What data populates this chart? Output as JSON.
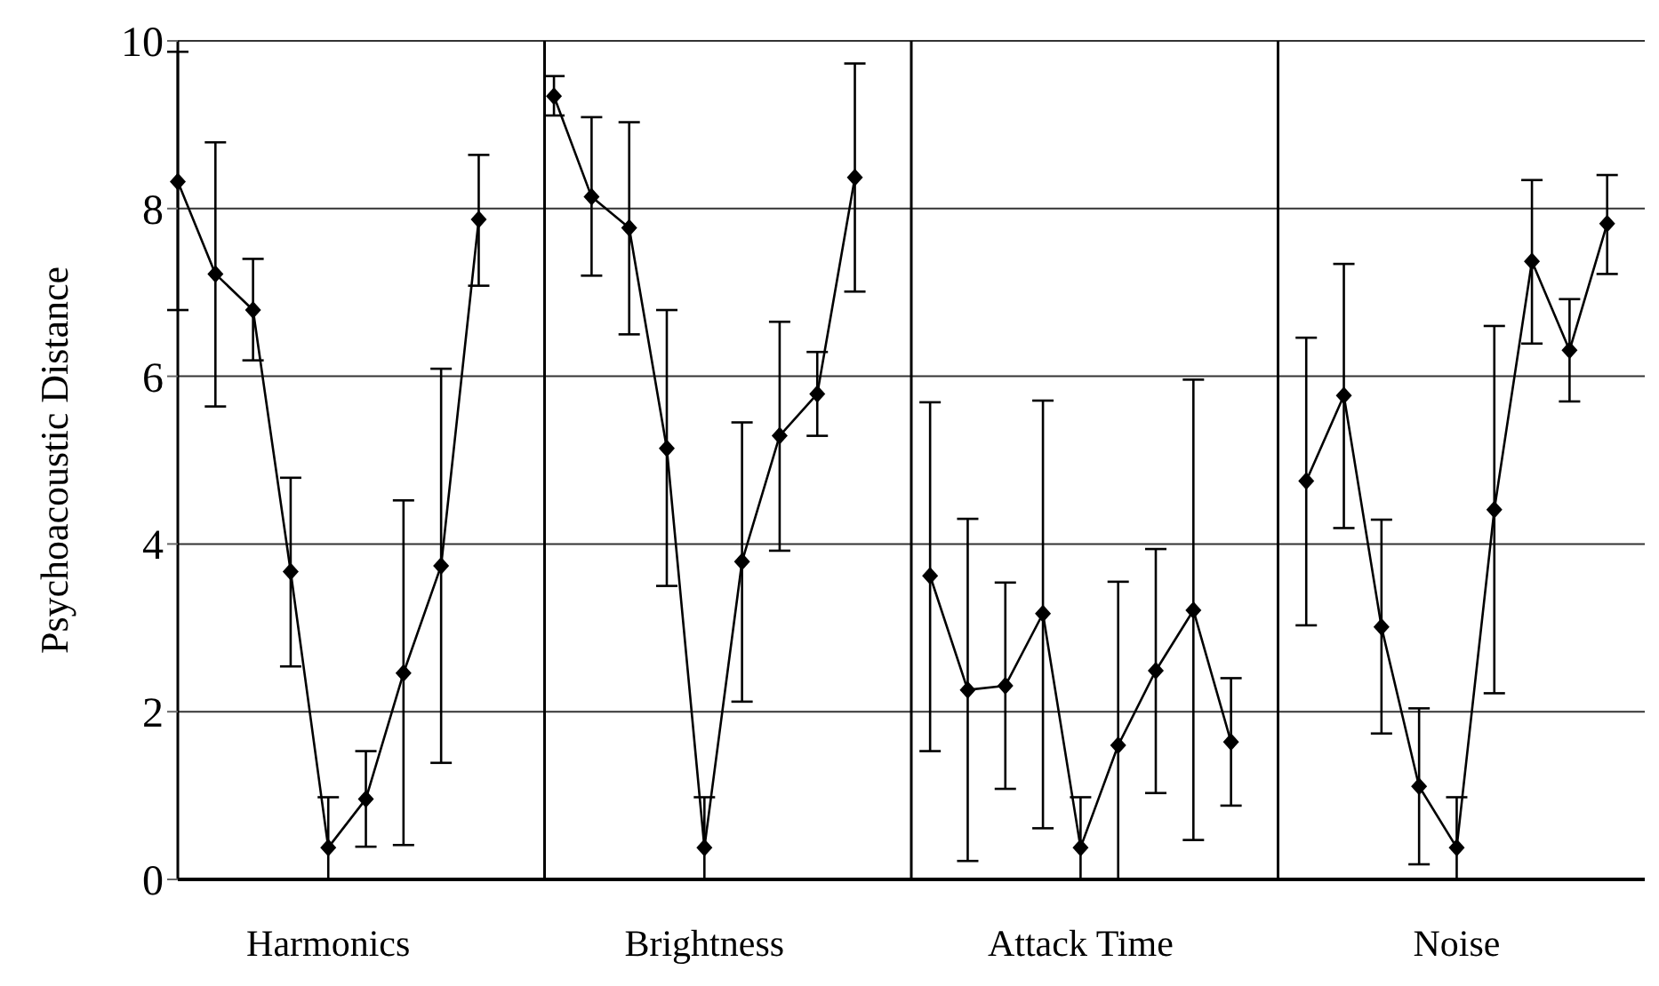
{
  "chart_data": {
    "type": "line",
    "ylabel": "Psychoacoustic Distance",
    "categories": [
      null,
      null,
      null,
      null,
      "Harmonics",
      null,
      null,
      null,
      null,
      null,
      null,
      null,
      null,
      null,
      "Brightness",
      null,
      null,
      null,
      null,
      null,
      null,
      null,
      null,
      null,
      "Attack Time",
      null,
      null,
      null,
      null,
      null,
      null,
      null,
      null,
      null,
      "Noise",
      null,
      null,
      null,
      null,
      null
    ],
    "series": [
      {
        "color": "#000000",
        "values": [
          8.32,
          7.22,
          6.79,
          3.67,
          0.38,
          0.96,
          2.46,
          3.74,
          7.87,
          null,
          null,
          null,
          null,
          null,
          null,
          null,
          null,
          null,
          null,
          null,
          null,
          null,
          null,
          null,
          null,
          null,
          null,
          null,
          null,
          null,
          null,
          null,
          null,
          null,
          null,
          null,
          null,
          null,
          null,
          null
        ],
        "errors": [
          [
            6.79,
            9.87
          ],
          [
            5.64,
            8.79
          ],
          [
            6.19,
            7.4
          ],
          [
            2.54,
            4.79
          ],
          [
            0,
            0.98
          ],
          [
            0.39,
            1.53
          ],
          [
            0.41,
            4.52
          ],
          [
            1.39,
            6.09
          ],
          [
            7.08,
            8.64
          ],
          null,
          null,
          null,
          null,
          null,
          null,
          null,
          null,
          null,
          null,
          null,
          null,
          null,
          null,
          null,
          null,
          null,
          null,
          null,
          null,
          null,
          null,
          null,
          null,
          null,
          null,
          null,
          null,
          null,
          null,
          null
        ]
      },
      {
        "color": "#000000",
        "values": [
          null,
          null,
          null,
          null,
          null,
          null,
          null,
          null,
          null,
          null,
          9.34,
          8.14,
          7.77,
          5.14,
          0.38,
          3.79,
          5.29,
          5.79,
          8.37,
          null,
          null,
          null,
          null,
          null,
          null,
          null,
          null,
          null,
          null,
          null,
          null,
          null,
          null,
          null,
          null,
          null,
          null,
          null,
          null,
          null
        ],
        "errors": [
          null,
          null,
          null,
          null,
          null,
          null,
          null,
          null,
          null,
          null,
          [
            9.11,
            9.58
          ],
          [
            7.2,
            9.09
          ],
          [
            6.5,
            9.03
          ],
          [
            3.5,
            6.79
          ],
          [
            0,
            0.98
          ],
          [
            2.12,
            5.45
          ],
          [
            3.92,
            6.65
          ],
          [
            5.29,
            6.29
          ],
          [
            7.01,
            9.73
          ],
          null,
          null,
          null,
          null,
          null,
          null,
          null,
          null,
          null,
          null,
          null,
          null,
          null,
          null,
          null,
          null,
          null,
          null,
          null,
          null,
          null
        ]
      },
      {
        "color": "#000000",
        "values": [
          null,
          null,
          null,
          null,
          null,
          null,
          null,
          null,
          null,
          null,
          null,
          null,
          null,
          null,
          null,
          null,
          null,
          null,
          null,
          null,
          3.62,
          2.26,
          2.31,
          3.17,
          0.38,
          1.6,
          2.49,
          3.21,
          1.64,
          null,
          null,
          null,
          null,
          null,
          null,
          null,
          null,
          null,
          null,
          null
        ],
        "errors": [
          null,
          null,
          null,
          null,
          null,
          null,
          null,
          null,
          null,
          null,
          null,
          null,
          null,
          null,
          null,
          null,
          null,
          null,
          null,
          null,
          [
            1.53,
            5.69
          ],
          [
            0.22,
            4.3
          ],
          [
            1.08,
            3.54
          ],
          [
            0.61,
            5.71
          ],
          [
            0,
            0.98
          ],
          [
            0,
            3.55
          ],
          [
            1.03,
            3.94
          ],
          [
            0.47,
            5.96
          ],
          [
            0.88,
            2.4
          ],
          null,
          null,
          null,
          null,
          null,
          null,
          null,
          null,
          null,
          null,
          null
        ]
      },
      {
        "color": "#000000",
        "values": [
          null,
          null,
          null,
          null,
          null,
          null,
          null,
          null,
          null,
          null,
          null,
          null,
          null,
          null,
          null,
          null,
          null,
          null,
          null,
          null,
          null,
          null,
          null,
          null,
          null,
          null,
          null,
          null,
          null,
          null,
          4.75,
          5.77,
          3.01,
          1.11,
          0.38,
          4.41,
          7.37,
          6.31,
          7.82,
          null
        ],
        "errors": [
          null,
          null,
          null,
          null,
          null,
          null,
          null,
          null,
          null,
          null,
          null,
          null,
          null,
          null,
          null,
          null,
          null,
          null,
          null,
          null,
          null,
          null,
          null,
          null,
          null,
          null,
          null,
          null,
          null,
          null,
          [
            3.03,
            6.46
          ],
          [
            4.19,
            7.34
          ],
          [
            1.74,
            4.29
          ],
          [
            0.18,
            2.04
          ],
          [
            0,
            0.98
          ],
          [
            2.22,
            6.6
          ],
          [
            6.39,
            8.34
          ],
          [
            5.7,
            6.92
          ],
          [
            7.22,
            8.4
          ],
          null
        ]
      }
    ],
    "ylim": [
      0,
      10
    ],
    "yticks": [
      0,
      2,
      4,
      6,
      8,
      10
    ],
    "grid": "y",
    "marker": "diamond",
    "line_style": "solid"
  }
}
